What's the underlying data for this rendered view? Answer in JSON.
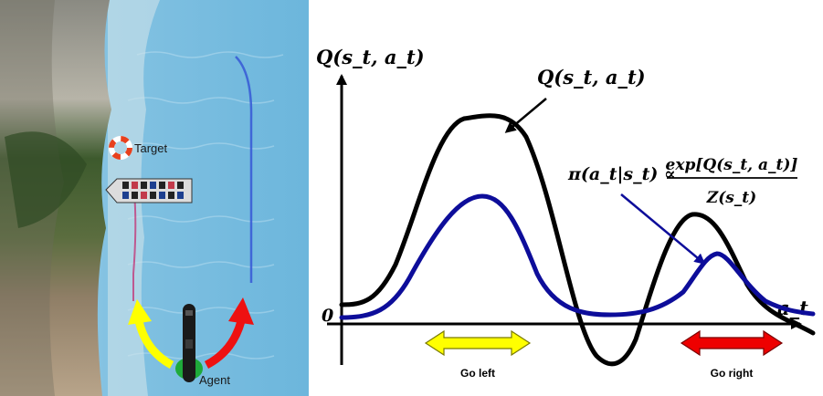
{
  "scene": {
    "target_label": "Target",
    "agent_label": "Agent"
  },
  "plot": {
    "y_axis_label": "Q(s_t, a_t)",
    "x_axis_label": "a_t",
    "origin_label": "0",
    "q_curve_label": "Q(s_t, a_t)",
    "policy_label_lhs": "π(a_t|s_t) ∝",
    "policy_label_numerator": "exp[Q(s_t, a_t)]",
    "policy_label_denominator": "Z(s_t)",
    "go_left_label": "Go left",
    "go_right_label": "Go right"
  },
  "colors": {
    "q_curve": "#000000",
    "policy_curve": "#0d0d9a",
    "go_left_arrow": "#ffff00",
    "go_right_arrow": "#ee0000",
    "water": "#7fbfe0",
    "shore": "#4a5a3a"
  }
}
